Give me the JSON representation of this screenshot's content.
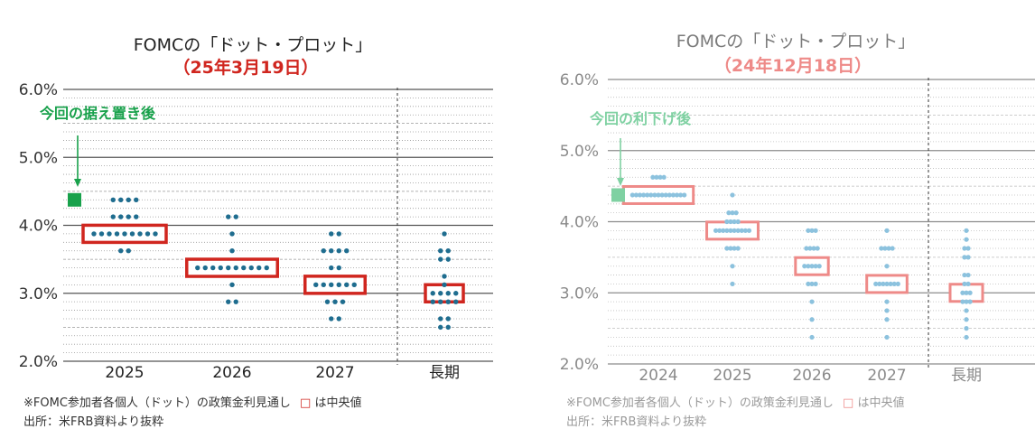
{
  "colors": {
    "left_title": "#222222",
    "left_date": "#d0261f",
    "left_box": "#d0261f",
    "left_dot": "#1f6d8f",
    "left_green": "#18a14b",
    "right_title": "#7a7a7a",
    "right_date": "#ee8a88",
    "right_box": "#ee8a88",
    "right_dot": "#8cc2de",
    "right_green": "#7fd1a2",
    "grid_major": "#555555",
    "grid_minor": "#9a9a9a",
    "left_note": "#333333",
    "right_note": "#9a9a9a"
  },
  "chart_data": [
    {
      "type": "scatter",
      "title": "FOMCの「ドット・プロット」",
      "subtitle": "（25年3月19日）",
      "xlabel": "",
      "ylabel": "",
      "ylim": [
        2.0,
        6.0
      ],
      "yticks": [
        "2.0%",
        "3.0%",
        "4.0%",
        "5.0%",
        "6.0%"
      ],
      "categories": [
        "2025",
        "2026",
        "2027",
        "長期"
      ],
      "dots": [
        {
          "category": "2025",
          "levels": [
            {
              "rate": 4.375,
              "count": 4
            },
            {
              "rate": 4.125,
              "count": 4
            },
            {
              "rate": 3.875,
              "count": 9
            },
            {
              "rate": 3.625,
              "count": 2
            }
          ]
        },
        {
          "category": "2026",
          "levels": [
            {
              "rate": 4.125,
              "count": 2
            },
            {
              "rate": 3.875,
              "count": 1
            },
            {
              "rate": 3.625,
              "count": 1
            },
            {
              "rate": 3.375,
              "count": 10
            },
            {
              "rate": 3.125,
              "count": 1
            },
            {
              "rate": 2.875,
              "count": 2
            }
          ]
        },
        {
          "category": "2027",
          "levels": [
            {
              "rate": 3.875,
              "count": 2
            },
            {
              "rate": 3.625,
              "count": 4
            },
            {
              "rate": 3.375,
              "count": 2
            },
            {
              "rate": 3.125,
              "count": 6
            },
            {
              "rate": 2.875,
              "count": 3
            },
            {
              "rate": 2.625,
              "count": 2
            }
          ]
        },
        {
          "category": "長期",
          "levels": [
            {
              "rate": 3.875,
              "count": 1
            },
            {
              "rate": 3.625,
              "count": 2
            },
            {
              "rate": 3.5,
              "count": 2
            },
            {
              "rate": 3.25,
              "count": 1
            },
            {
              "rate": 3.125,
              "count": 1
            },
            {
              "rate": 3.0,
              "count": 4
            },
            {
              "rate": 2.875,
              "count": 4
            },
            {
              "rate": 2.625,
              "count": 2
            },
            {
              "rate": 2.5,
              "count": 2
            }
          ]
        }
      ],
      "medians": [
        {
          "category": "2025",
          "rate": 3.875
        },
        {
          "category": "2026",
          "rate": 3.375
        },
        {
          "category": "2027",
          "rate": 3.125
        },
        {
          "category": "長期",
          "rate": 3.0
        }
      ],
      "current_rate": 4.375,
      "annotation": "今回の据え置き後",
      "note_1_prefix": "※FOMC参加者各個人（ドット）の政策金利見通し",
      "note_1_suffix": "は中央値",
      "note_2": "出所：米FRB資料より抜粋"
    },
    {
      "type": "scatter",
      "title": "FOMCの「ドット・プロット」",
      "subtitle": "（24年12月18日）",
      "xlabel": "",
      "ylabel": "",
      "ylim": [
        2.0,
        6.0
      ],
      "yticks": [
        "2.0%",
        "3.0%",
        "4.0%",
        "5.0%",
        "6.0%"
      ],
      "categories": [
        "2024",
        "2025",
        "2026",
        "2027",
        "長期"
      ],
      "dots": [
        {
          "category": "2024",
          "levels": [
            {
              "rate": 4.625,
              "count": 4
            },
            {
              "rate": 4.375,
              "count": 15
            }
          ]
        },
        {
          "category": "2025",
          "levels": [
            {
              "rate": 4.375,
              "count": 1
            },
            {
              "rate": 4.125,
              "count": 3
            },
            {
              "rate": 4.0,
              "count": 4
            },
            {
              "rate": 3.875,
              "count": 10
            },
            {
              "rate": 3.625,
              "count": 4
            },
            {
              "rate": 3.375,
              "count": 1
            },
            {
              "rate": 3.125,
              "count": 1
            }
          ]
        },
        {
          "category": "2026",
          "levels": [
            {
              "rate": 3.875,
              "count": 3
            },
            {
              "rate": 3.625,
              "count": 4
            },
            {
              "rate": 3.375,
              "count": 5
            },
            {
              "rate": 3.125,
              "count": 3
            },
            {
              "rate": 2.875,
              "count": 1
            },
            {
              "rate": 2.625,
              "count": 1
            },
            {
              "rate": 2.375,
              "count": 1
            }
          ]
        },
        {
          "category": "2027",
          "levels": [
            {
              "rate": 3.875,
              "count": 1
            },
            {
              "rate": 3.625,
              "count": 4
            },
            {
              "rate": 3.375,
              "count": 1
            },
            {
              "rate": 3.125,
              "count": 7
            },
            {
              "rate": 2.875,
              "count": 1
            },
            {
              "rate": 2.75,
              "count": 1
            },
            {
              "rate": 2.625,
              "count": 1
            },
            {
              "rate": 2.375,
              "count": 1
            }
          ]
        },
        {
          "category": "長期",
          "levels": [
            {
              "rate": 3.875,
              "count": 1
            },
            {
              "rate": 3.75,
              "count": 1
            },
            {
              "rate": 3.625,
              "count": 2
            },
            {
              "rate": 3.5,
              "count": 2
            },
            {
              "rate": 3.25,
              "count": 2
            },
            {
              "rate": 3.125,
              "count": 2
            },
            {
              "rate": 3.0,
              "count": 3
            },
            {
              "rate": 2.875,
              "count": 3
            },
            {
              "rate": 2.75,
              "count": 1
            },
            {
              "rate": 2.625,
              "count": 1
            },
            {
              "rate": 2.5,
              "count": 1
            },
            {
              "rate": 2.375,
              "count": 1
            }
          ]
        }
      ],
      "medians": [
        {
          "category": "2024",
          "rate": 4.375
        },
        {
          "category": "2025",
          "rate": 3.875
        },
        {
          "category": "2026",
          "rate": 3.375
        },
        {
          "category": "2027",
          "rate": 3.125
        },
        {
          "category": "長期",
          "rate": 3.0
        }
      ],
      "current_rate": 4.375,
      "annotation": "今回の利下げ後",
      "note_1_prefix": "※FOMC参加者各個人（ドット）の政策金利見通し",
      "note_1_suffix": "は中央値",
      "note_2": "出所：米FRB資料より抜粋"
    }
  ]
}
